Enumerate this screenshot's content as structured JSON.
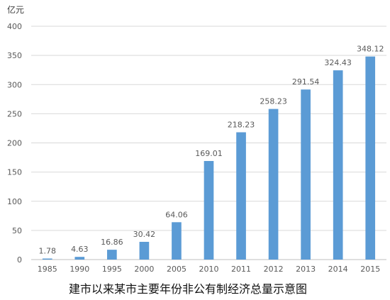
{
  "chart_data": {
    "type": "bar",
    "title": "",
    "caption": "建市以来某市主要年份非公有制经济总量示意图",
    "ylabel": "亿元",
    "xlabel": "",
    "categories": [
      "1985",
      "1990",
      "1995",
      "2000",
      "2005",
      "2010",
      "2011",
      "2012",
      "2013",
      "2014",
      "2015"
    ],
    "values": [
      1.78,
      4.63,
      16.86,
      30.42,
      64.06,
      169.01,
      218.23,
      258.23,
      291.54,
      324.43,
      348.12
    ],
    "value_labels": [
      "1.78",
      "4.63",
      "16.86",
      "30.42",
      "64.06",
      "169.01",
      "218.23",
      "258.23",
      "291.54",
      "324.43",
      "348.12"
    ],
    "ylim": [
      0,
      400
    ],
    "yticks": [
      0,
      50,
      100,
      150,
      200,
      250,
      300,
      350,
      400
    ],
    "grid": true,
    "bar_color": "#5b9bd5",
    "grid_color": "#d9d9d9",
    "axis_color": "#bfbfbf"
  }
}
